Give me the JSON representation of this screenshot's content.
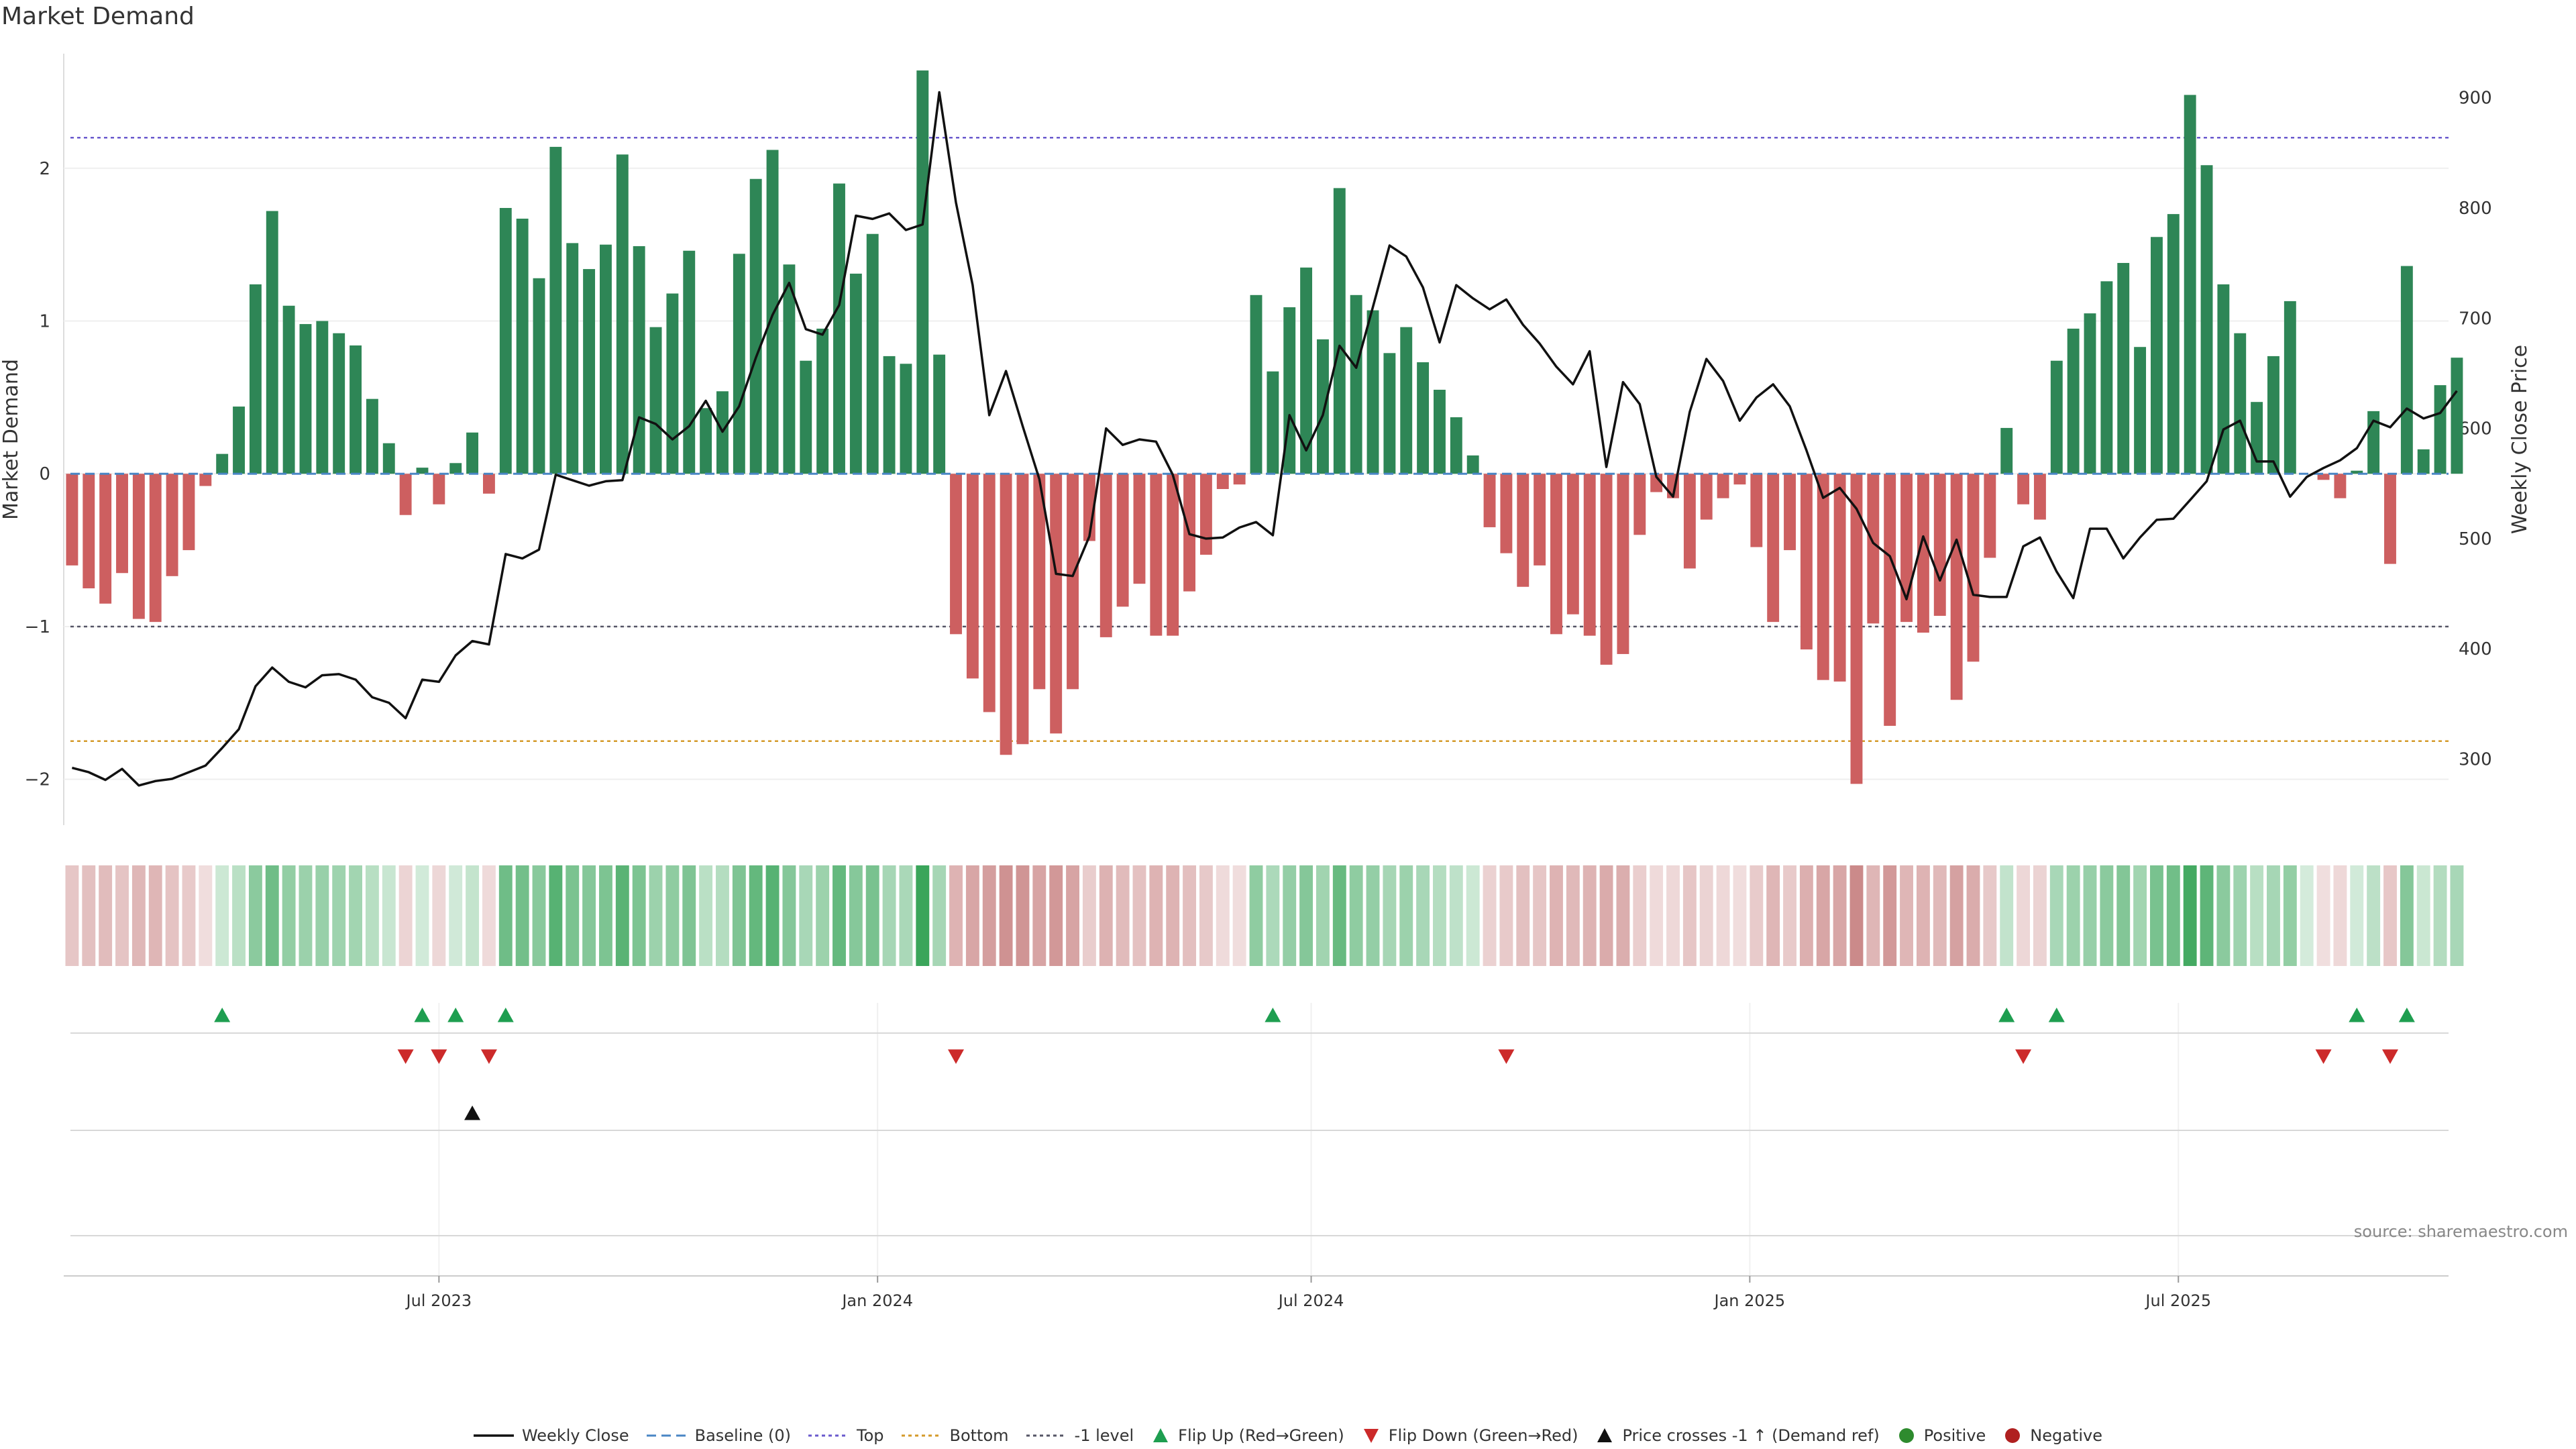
{
  "chart_data": {
    "type": "bar",
    "title": "Market Demand",
    "ylabel": "Market Demand",
    "y2label": "Weekly Close Price",
    "ylim": [
      -2.3,
      2.75
    ],
    "y2lim": [
      240,
      940
    ],
    "yticks": [
      -2,
      -1,
      0,
      1,
      2
    ],
    "y2ticks": [
      300,
      400,
      500,
      600,
      700,
      800,
      900
    ],
    "x_range_weeks": 143,
    "x_start": "2023-01-09",
    "xticks": [
      {
        "label": "Jul 2023",
        "week": 22
      },
      {
        "label": "Jan 2024",
        "week": 48.3
      },
      {
        "label": "Jul 2024",
        "week": 74.3
      },
      {
        "label": "Jan 2025",
        "week": 100.6
      },
      {
        "label": "Jul 2025",
        "week": 126.3
      }
    ],
    "reference_lines": {
      "top": 2.2,
      "bottom": -1.75,
      "minus_one": -1.0,
      "baseline": 0
    },
    "demand": [
      -0.6,
      -0.75,
      -0.85,
      -0.65,
      -0.95,
      -0.97,
      -0.67,
      -0.5,
      -0.08,
      0.13,
      0.44,
      1.24,
      1.72,
      1.1,
      0.98,
      1.0,
      0.92,
      0.84,
      0.49,
      0.2,
      -0.27,
      0.04,
      -0.2,
      0.07,
      0.27,
      -0.13,
      1.74,
      1.67,
      1.28,
      2.14,
      1.51,
      1.34,
      1.5,
      2.09,
      1.49,
      0.96,
      1.18,
      1.46,
      0.43,
      0.54,
      1.44,
      1.93,
      2.12,
      1.37,
      0.74,
      0.95,
      1.9,
      1.31,
      1.57,
      0.77,
      0.72,
      2.64,
      0.78,
      -1.05,
      -1.34,
      -1.56,
      -1.84,
      -1.77,
      -1.41,
      -1.7,
      -1.41,
      -0.44,
      -1.07,
      -0.87,
      -0.72,
      -1.06,
      -1.06,
      -0.77,
      -0.53,
      -0.1,
      -0.07,
      1.17,
      0.67,
      1.09,
      1.35,
      0.88,
      1.87,
      1.17,
      1.07,
      0.79,
      0.96,
      0.73,
      0.55,
      0.37,
      0.12,
      -0.35,
      -0.52,
      -0.74,
      -0.6,
      -1.05,
      -0.92,
      -1.06,
      -1.25,
      -1.18,
      -0.4,
      -0.12,
      -0.16,
      -0.62,
      -0.3,
      -0.16,
      -0.07,
      -0.48,
      -0.97,
      -0.5,
      -1.15,
      -1.35,
      -1.36,
      -2.03,
      -0.98,
      -1.65,
      -0.97,
      -1.04,
      -0.93,
      -1.48,
      -1.23,
      -0.55,
      0.3,
      -0.2,
      -0.3,
      0.74,
      0.95,
      1.05,
      1.26,
      1.38,
      0.83,
      1.55,
      1.7,
      2.48,
      2.02,
      1.24,
      0.92,
      0.47,
      0.77,
      1.13,
      0.0,
      -0.04,
      -0.16,
      0.02,
      0.41,
      -0.59,
      1.36,
      0.16,
      0.58,
      0.76
    ],
    "weekly_close": [
      292,
      288,
      281,
      291,
      276,
      280,
      282,
      288,
      294,
      310,
      327,
      366,
      383,
      370,
      365,
      376,
      377,
      372,
      356,
      351,
      337,
      372,
      370,
      394,
      407,
      404,
      486,
      482,
      490,
      558,
      553,
      548,
      552,
      553,
      610,
      604,
      590,
      602,
      625,
      597,
      620,
      664,
      703,
      732,
      690,
      685,
      712,
      793,
      790,
      795,
      780,
      785,
      905,
      805,
      730,
      612,
      652,
      602,
      554,
      468,
      466,
      502,
      600,
      585,
      590,
      588,
      558,
      504,
      500,
      501,
      510,
      515,
      503,
      612,
      580,
      612,
      675,
      655,
      710,
      766,
      756,
      728,
      678,
      730,
      718,
      708,
      717,
      694,
      677,
      656,
      640,
      670,
      565,
      642,
      622,
      556,
      538,
      615,
      663,
      643,
      607,
      628,
      640,
      620,
      580,
      537,
      546,
      527,
      496,
      484,
      445,
      502,
      462,
      499,
      449,
      447,
      447,
      493,
      501,
      470,
      446,
      509,
      509,
      482,
      501,
      517,
      518,
      535,
      552,
      599,
      607,
      570,
      570,
      538,
      556,
      564,
      571,
      582,
      607,
      601,
      618,
      609,
      614,
      634
    ],
    "flip_up": [
      9,
      21,
      23,
      26,
      72,
      116,
      119,
      137,
      140
    ],
    "flip_down": [
      20,
      22,
      25,
      53,
      86,
      117,
      135,
      139
    ],
    "price_cross": [
      24
    ],
    "legend": [
      {
        "label": "Weekly Close",
        "kind": "line",
        "color": "#111111"
      },
      {
        "label": "Baseline (0)",
        "kind": "dash",
        "color": "#4a86c5"
      },
      {
        "label": "Top",
        "kind": "dot",
        "color": "#6a5acd"
      },
      {
        "label": "Bottom",
        "kind": "dot",
        "color": "#d49a2a"
      },
      {
        "label": "-1 level",
        "kind": "dot",
        "color": "#555566"
      },
      {
        "label": "Flip Up (Red→Green)",
        "kind": "up",
        "color": "#1e9e50"
      },
      {
        "label": "Flip Down (Green→Red)",
        "kind": "down",
        "color": "#cc2a2a"
      },
      {
        "label": "Price crosses -1 ↑ (Demand ref)",
        "kind": "up",
        "color": "#111111"
      },
      {
        "label": "Positive",
        "kind": "dot-big",
        "color": "#2e8b2e"
      },
      {
        "label": "Negative",
        "kind": "dot-big",
        "color": "#b02020"
      }
    ]
  },
  "source_text": "source: sharemaestro.com",
  "colors": {
    "pos_bar": "#2e8656",
    "neg_bar": "#cd5f60",
    "heat_pos": "#3aa55a",
    "heat_neg": "#c07070"
  }
}
